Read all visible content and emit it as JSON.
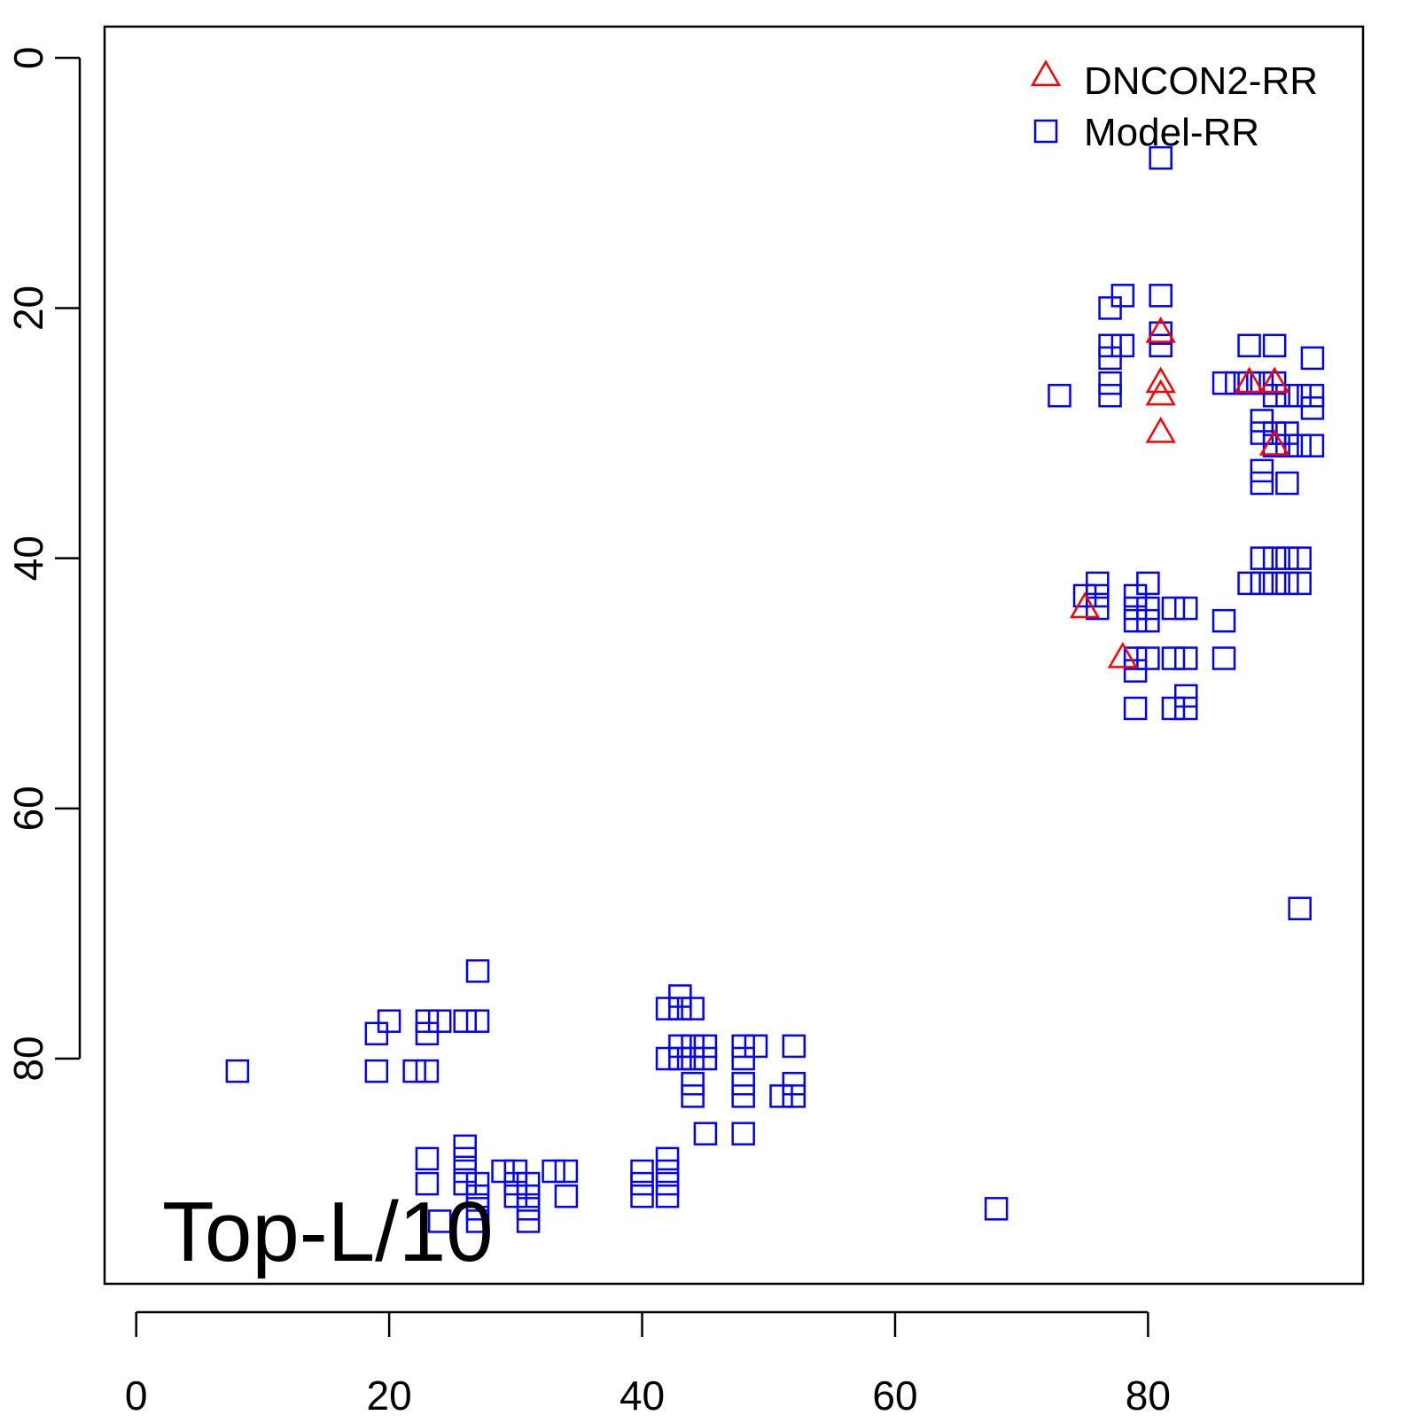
{
  "chart_data": {
    "type": "scatter",
    "title": "",
    "xlabel": "",
    "ylabel": "",
    "xlim": [
      -2.5,
      97
    ],
    "ylim": [
      98,
      -2.5
    ],
    "y_reversed": true,
    "grid": false,
    "legend_position": "top-right",
    "x_ticks": [
      "0",
      "20",
      "40",
      "60",
      "80"
    ],
    "y_ticks": [
      "0",
      "20",
      "40",
      "60",
      "80"
    ],
    "annotation": "Top-L/10",
    "series": [
      {
        "name": "DNCON2-RR",
        "marker": "triangle",
        "color": "#ff0000",
        "points": [
          [
            81,
            22
          ],
          [
            81,
            26
          ],
          [
            81,
            27
          ],
          [
            81,
            30
          ],
          [
            88,
            26
          ],
          [
            90,
            26
          ],
          [
            90,
            31
          ],
          [
            75,
            44
          ],
          [
            78,
            48
          ]
        ]
      },
      {
        "name": "Model-RR",
        "marker": "square",
        "color": "#0000ff",
        "points": [
          [
            81,
            8
          ],
          [
            78,
            19
          ],
          [
            81,
            19
          ],
          [
            77,
            20
          ],
          [
            81,
            22
          ],
          [
            77,
            23
          ],
          [
            78,
            23
          ],
          [
            81,
            23
          ],
          [
            77,
            24
          ],
          [
            88,
            23
          ],
          [
            90,
            23
          ],
          [
            93,
            24
          ],
          [
            73,
            27
          ],
          [
            77,
            26
          ],
          [
            77,
            27
          ],
          [
            86,
            26
          ],
          [
            87,
            26
          ],
          [
            88,
            26
          ],
          [
            89,
            26
          ],
          [
            90,
            26
          ],
          [
            90,
            27
          ],
          [
            91,
            27
          ],
          [
            92,
            27
          ],
          [
            93,
            27
          ],
          [
            93,
            28
          ],
          [
            89,
            29
          ],
          [
            89,
            30
          ],
          [
            90,
            30
          ],
          [
            91,
            30
          ],
          [
            90,
            31
          ],
          [
            91,
            31
          ],
          [
            92,
            31
          ],
          [
            93,
            31
          ],
          [
            89,
            33
          ],
          [
            89,
            34
          ],
          [
            91,
            34
          ],
          [
            89,
            40
          ],
          [
            90,
            40
          ],
          [
            91,
            40
          ],
          [
            92,
            40
          ],
          [
            88,
            42
          ],
          [
            89,
            42
          ],
          [
            90,
            42
          ],
          [
            91,
            42
          ],
          [
            92,
            42
          ],
          [
            76,
            42
          ],
          [
            75,
            43
          ],
          [
            76,
            43
          ],
          [
            76,
            44
          ],
          [
            79,
            43
          ],
          [
            80,
            42
          ],
          [
            79,
            44
          ],
          [
            80,
            44
          ],
          [
            79,
            45
          ],
          [
            80,
            45
          ],
          [
            82,
            44
          ],
          [
            83,
            44
          ],
          [
            86,
            45
          ],
          [
            79,
            48
          ],
          [
            80,
            48
          ],
          [
            82,
            48
          ],
          [
            83,
            48
          ],
          [
            86,
            48
          ],
          [
            79,
            49
          ],
          [
            79,
            52
          ],
          [
            82,
            52
          ],
          [
            83,
            51
          ],
          [
            83,
            52
          ],
          [
            92,
            68
          ],
          [
            27,
            73
          ],
          [
            43,
            75
          ],
          [
            42,
            76
          ],
          [
            43,
            76
          ],
          [
            44,
            76
          ],
          [
            20,
            77
          ],
          [
            23,
            77
          ],
          [
            24,
            77
          ],
          [
            26,
            77
          ],
          [
            27,
            77
          ],
          [
            19,
            78
          ],
          [
            23,
            78
          ],
          [
            43,
            79
          ],
          [
            44,
            79
          ],
          [
            45,
            79
          ],
          [
            48,
            79
          ],
          [
            49,
            79
          ],
          [
            52,
            79
          ],
          [
            42,
            80
          ],
          [
            43,
            80
          ],
          [
            44,
            80
          ],
          [
            45,
            80
          ],
          [
            48,
            80
          ],
          [
            8,
            81
          ],
          [
            19,
            81
          ],
          [
            22,
            81
          ],
          [
            23,
            81
          ],
          [
            44,
            82
          ],
          [
            48,
            82
          ],
          [
            52,
            82
          ],
          [
            44,
            83
          ],
          [
            48,
            83
          ],
          [
            51,
            83
          ],
          [
            52,
            83
          ],
          [
            45,
            86
          ],
          [
            48,
            86
          ],
          [
            26,
            87
          ],
          [
            26,
            88
          ],
          [
            23,
            88
          ],
          [
            42,
            88
          ],
          [
            26,
            89
          ],
          [
            29,
            89
          ],
          [
            30,
            89
          ],
          [
            33,
            89
          ],
          [
            34,
            89
          ],
          [
            40,
            89
          ],
          [
            42,
            89
          ],
          [
            23,
            90
          ],
          [
            26,
            90
          ],
          [
            27,
            90
          ],
          [
            30,
            90
          ],
          [
            31,
            90
          ],
          [
            40,
            90
          ],
          [
            42,
            90
          ],
          [
            27,
            91
          ],
          [
            30,
            91
          ],
          [
            31,
            91
          ],
          [
            34,
            91
          ],
          [
            40,
            91
          ],
          [
            42,
            91
          ],
          [
            27,
            92
          ],
          [
            31,
            92
          ],
          [
            68,
            92
          ],
          [
            24,
            93
          ],
          [
            27,
            93
          ],
          [
            31,
            93
          ]
        ]
      }
    ]
  }
}
